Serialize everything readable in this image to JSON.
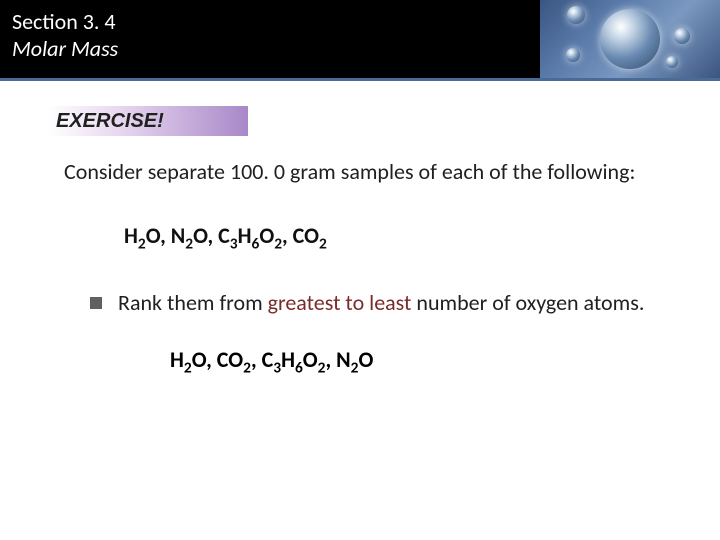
{
  "header": {
    "section_label": "Section 3. 4",
    "title": "Molar Mass",
    "band_color": "#000000",
    "underline_color": "#4a6a98"
  },
  "exercise": {
    "label": "EXERCISE!",
    "gradient_start": "#ffffff",
    "gradient_end": "#a888c8"
  },
  "prompt": {
    "text": "Consider separate 100. 0 gram samples of each of the following:"
  },
  "formulas": {
    "items": [
      "H₂O",
      "N₂O",
      "C₃H₆O₂",
      "CO₂"
    ],
    "h2o": "H",
    "h2o_sub": "2",
    "h2o_tail": "O",
    "n2o": "N",
    "n2o_sub": "2",
    "n2o_tail": "O",
    "c3h6o2_c": "C",
    "c3h6o2_3": "3",
    "c3h6o2_h": "H",
    "c3h6o2_6": "6",
    "c3h6o2_o": "O",
    "c3h6o2_2": "2",
    "co2": "CO",
    "co2_sub": "2"
  },
  "bullet": {
    "pre": "Rank them from ",
    "emph": "greatest to least",
    "post": " number of oxygen atoms.",
    "emph_color": "#7a2a2a"
  },
  "answer": {
    "h2o": "H",
    "h2o_sub": "2",
    "h2o_tail": "O",
    "co2": "CO",
    "co2_sub": "2",
    "c_c": "C",
    "c_3": "3",
    "c_h": "H",
    "c_6": "6",
    "c_o": "O",
    "c_2": "2",
    "n2o": "N",
    "n2o_sub": "2",
    "n2o_tail": "O"
  }
}
